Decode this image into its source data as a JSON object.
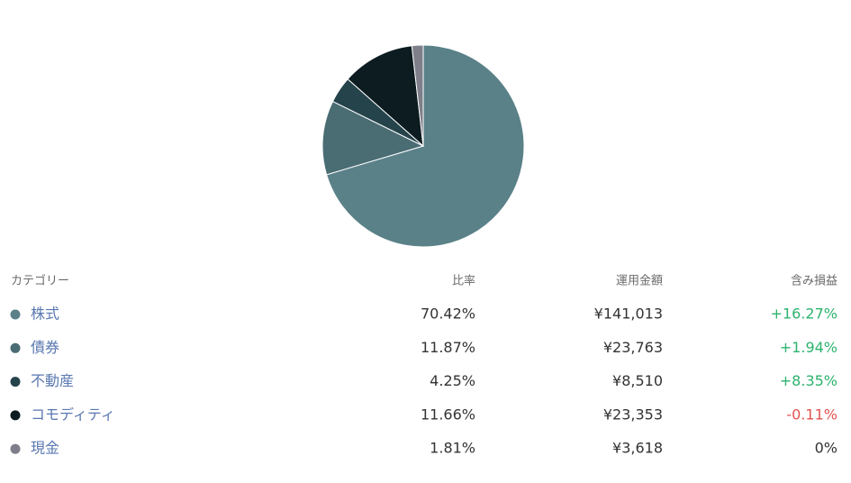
{
  "chart_data": {
    "type": "pie",
    "categories": [
      "株式",
      "債券",
      "不動産",
      "コモディティ",
      "現金"
    ],
    "values": [
      70.42,
      11.87,
      4.25,
      11.66,
      1.81
    ],
    "value_labels": [
      "70.42%",
      "11.87%",
      "4.25%",
      "11.66%",
      "1.81%"
    ],
    "colors": [
      "#5a8188",
      "#4a6c73",
      "#25434b",
      "#0c1c21",
      "#7e7f8b"
    ]
  },
  "table": {
    "headers": [
      "カテゴリー",
      "比率",
      "運用金額",
      "含み損益"
    ],
    "rows": [
      [
        "¥141,013",
        "+16.27%"
      ],
      [
        "¥23,763",
        "+1.94%"
      ],
      [
        "¥8,510",
        "+8.35%"
      ],
      [
        "¥23,353",
        "-0.11%"
      ],
      [
        "¥3,618",
        "0%"
      ]
    ]
  }
}
